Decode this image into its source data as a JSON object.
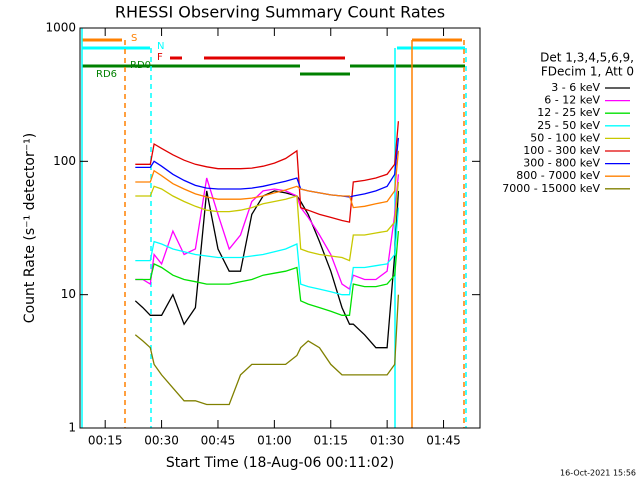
{
  "chart_data": {
    "type": "line",
    "title": "RHESSI Observing Summary Count Rates",
    "xlabel": "Start Time (18-Aug-06 00:11:02)",
    "ylabel": "Count Rate (s⁻¹ detector⁻¹)",
    "legend_header": [
      "Det 1,3,4,5,6,9,",
      "FDecim 1, Att 0"
    ],
    "footer": "16-Oct-2021 15:56",
    "state_labels": [
      "S",
      "N",
      "F",
      "RD0",
      "RD6"
    ],
    "log_y": true,
    "xlim": [
      8.3,
      114.7
    ],
    "xticks": [
      {
        "value": 15,
        "label": "00:15"
      },
      {
        "value": 30,
        "label": "00:30"
      },
      {
        "value": 45,
        "label": "00:45"
      },
      {
        "value": 60,
        "label": "01:00"
      },
      {
        "value": 75,
        "label": "01:15"
      },
      {
        "value": 90,
        "label": "01:30"
      },
      {
        "value": 105,
        "label": "01:45"
      }
    ],
    "ylim": [
      1,
      1000
    ],
    "yticks": [
      1,
      10,
      100,
      1000
    ],
    "x": [
      23,
      25,
      27,
      28,
      30,
      33,
      36,
      39,
      42,
      45,
      48,
      51,
      54,
      57,
      60,
      63,
      66,
      67,
      69,
      72,
      75,
      78,
      80,
      81,
      84,
      87,
      90,
      92,
      93
    ],
    "series": [
      {
        "name": "3 - 6 keV",
        "color": "#000000",
        "values": [
          9,
          8,
          7,
          7,
          7,
          10,
          6,
          8,
          60,
          22,
          15,
          15,
          40,
          55,
          60,
          58,
          55,
          50,
          40,
          25,
          15,
          8,
          6,
          6,
          5,
          4,
          4,
          20,
          60
        ]
      },
      {
        "name": "6 - 12 keV",
        "color": "#ff00ff",
        "values": [
          13,
          13,
          12,
          20,
          17,
          30,
          20,
          22,
          75,
          40,
          22,
          28,
          50,
          60,
          62,
          60,
          55,
          45,
          38,
          28,
          20,
          12,
          11,
          14,
          13,
          13,
          15,
          40,
          80
        ]
      },
      {
        "name": "12 - 25 keV",
        "color": "#00e000",
        "values": [
          13,
          13,
          13,
          17,
          16,
          14,
          13,
          12.5,
          12,
          12,
          12,
          12.5,
          13,
          14,
          14.5,
          15,
          16,
          9,
          8.5,
          8,
          7.5,
          7,
          7,
          12,
          11.5,
          11.5,
          12,
          14,
          30
        ]
      },
      {
        "name": "25 - 50 keV",
        "color": "#00ffff",
        "values": [
          18,
          18,
          18,
          25,
          24,
          22,
          21,
          20,
          19.5,
          19,
          19,
          19,
          19.5,
          20,
          21,
          22,
          24,
          12,
          11.5,
          11,
          10.5,
          10,
          10,
          16,
          16,
          16.5,
          17,
          20,
          45
        ]
      },
      {
        "name": "50 - 100 keV",
        "color": "#c8c800",
        "values": [
          55,
          55,
          55,
          65,
          62,
          55,
          50,
          46,
          43,
          42,
          42,
          43,
          45,
          48,
          50,
          52,
          55,
          22,
          21,
          20,
          19.5,
          19,
          18,
          28,
          28,
          29,
          30,
          35,
          70
        ]
      },
      {
        "name": "100 - 300 keV",
        "color": "#e00000",
        "values": [
          95,
          95,
          95,
          135,
          125,
          112,
          102,
          95,
          91,
          88,
          88,
          88,
          89,
          92,
          97,
          105,
          120,
          45,
          43,
          40,
          38,
          36,
          35,
          70,
          72,
          75,
          80,
          95,
          200
        ]
      },
      {
        "name": "300 - 800 keV",
        "color": "#0000ff",
        "values": [
          90,
          90,
          90,
          100,
          92,
          80,
          72,
          66,
          63,
          62,
          62,
          62,
          63,
          65,
          68,
          71,
          75,
          62,
          60,
          58,
          56,
          55,
          54,
          55,
          57,
          60,
          65,
          80,
          150
        ]
      },
      {
        "name": "800 - 7000 keV",
        "color": "#ff8000",
        "values": [
          70,
          70,
          70,
          85,
          78,
          68,
          62,
          57,
          54,
          52,
          52,
          52,
          53,
          55,
          58,
          61,
          65,
          62,
          60,
          58,
          56,
          55,
          55,
          45,
          46,
          48,
          50,
          60,
          120
        ]
      },
      {
        "name": "7000 - 15000 keV",
        "color": "#808000",
        "values": [
          5,
          4.5,
          4,
          3,
          2.5,
          2,
          1.6,
          1.6,
          1.5,
          1.5,
          1.5,
          2.5,
          3,
          3,
          3,
          3,
          3.5,
          4,
          4.5,
          4,
          3,
          2.5,
          2.5,
          2.5,
          2.5,
          2.5,
          2.5,
          3,
          10
        ]
      }
    ]
  }
}
